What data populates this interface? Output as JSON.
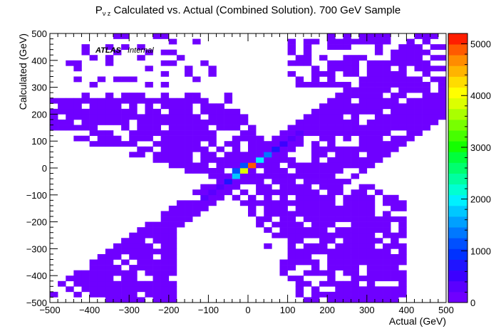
{
  "title": {
    "prefix": "P",
    "subscript": "ν z",
    "rest": " Calculated vs. Actual (Combined Solution). 700 GeV Sample"
  },
  "atlas_label": {
    "bold": "ATLAS",
    "normal": "Internal"
  },
  "chart_data": {
    "type": "heatmap",
    "xlabel": "Actual (GeV)",
    "ylabel": "Calculated (GeV)",
    "xlim": [
      -500,
      500
    ],
    "ylim": [
      -500,
      500
    ],
    "x_ticks": [
      -500,
      -400,
      -300,
      -200,
      -100,
      0,
      100,
      200,
      300,
      400,
      500
    ],
    "y_ticks": [
      -500,
      -400,
      -300,
      -200,
      -100,
      0,
      100,
      200,
      300,
      400,
      500
    ],
    "x_tick_labels": [
      "−500",
      "−400",
      "−300",
      "−200",
      "−100",
      "0",
      "100",
      "200",
      "300",
      "400",
      "500"
    ],
    "y_tick_labels": [
      "−500",
      "−400",
      "−300",
      "−200",
      "−100",
      "0",
      "100",
      "200",
      "300",
      "400",
      "500"
    ],
    "bin_width": 20,
    "z_range": [
      0,
      5200
    ],
    "z_ticks": [
      0,
      1000,
      2000,
      3000,
      4000,
      5000
    ],
    "z_tick_labels": [
      "0",
      "1000",
      "2000",
      "3000",
      "4000",
      "5000"
    ],
    "palette": [
      "#6f00ff",
      "#5a00ff",
      "#3c00ff",
      "#2014ff",
      "#0032ff",
      "#0050ff",
      "#0078ff",
      "#00a0ff",
      "#00c8ff",
      "#00f0ff",
      "#00ffd2",
      "#00ffa0",
      "#00ff6e",
      "#00ff3c",
      "#14ff00",
      "#46ff00",
      "#78ff00",
      "#aaff00",
      "#dcff00",
      "#ffff00",
      "#ffdc00",
      "#ffb400",
      "#ff8c00",
      "#ff5a00",
      "#ff1e00"
    ],
    "diagonal_hot_bins": [
      {
        "x": -110,
        "y": -110,
        "z": 250
      },
      {
        "x": -90,
        "y": -90,
        "z": 300
      },
      {
        "x": -70,
        "y": -70,
        "z": 400
      },
      {
        "x": -50,
        "y": -50,
        "z": 700
      },
      {
        "x": -30,
        "y": -10,
        "z": 1200
      },
      {
        "x": -30,
        "y": -30,
        "z": 1700
      },
      {
        "x": -10,
        "y": -10,
        "z": 3900
      },
      {
        "x": -10,
        "y": 10,
        "z": 1100
      },
      {
        "x": 10,
        "y": 10,
        "z": 4800
      },
      {
        "x": 30,
        "y": 30,
        "z": 1900
      },
      {
        "x": 50,
        "y": 50,
        "z": 1300
      },
      {
        "x": 70,
        "y": 70,
        "z": 800
      },
      {
        "x": 90,
        "y": 90,
        "z": 500
      },
      {
        "x": 110,
        "y": 110,
        "z": 350
      },
      {
        "x": 130,
        "y": 130,
        "z": 250
      },
      {
        "x": 150,
        "y": 150,
        "z": 200
      }
    ],
    "description": "Purple low-count X-shaped band: diagonal y=x plus wide anti-diagonal spread; hot spot near origin"
  }
}
